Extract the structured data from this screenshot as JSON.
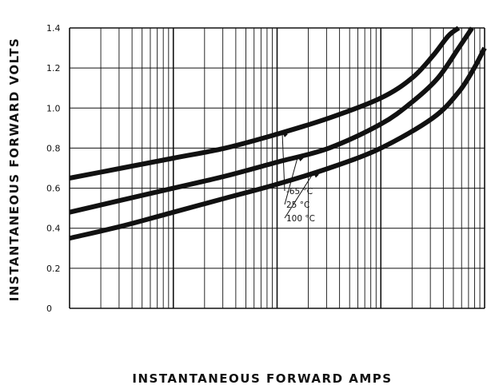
{
  "chart_data": {
    "type": "line",
    "title": "",
    "xlabel": "INSTANTANEOUS FORWARD AMPS",
    "ylabel": "INSTANTANEOUS FORWARD VOLTS",
    "x_scale": "log",
    "x_decades": 4,
    "x_tick_labels": [],
    "ylim": [
      0,
      1.4
    ],
    "y_ticks": [
      {
        "value": 0,
        "label": "0"
      },
      {
        "value": 0.2,
        "label": "0.2"
      },
      {
        "value": 0.4,
        "label": "0.4"
      },
      {
        "value": 0.6,
        "label": "0.6"
      },
      {
        "value": 0.8,
        "label": "0.8"
      },
      {
        "value": 1.0,
        "label": "1.0"
      },
      {
        "value": 1.2,
        "label": "1.2"
      },
      {
        "value": 1.4,
        "label": "1.4"
      }
    ],
    "grid": true,
    "line_color": "#111111",
    "series": [
      {
        "name": "-65 °C",
        "decade_pos": [
          0,
          0.5,
          1,
          1.5,
          2,
          2.5,
          3,
          3.3,
          3.5,
          3.65,
          3.75
        ],
        "values": [
          0.65,
          0.7,
          0.75,
          0.8,
          0.87,
          0.95,
          1.05,
          1.15,
          1.26,
          1.36,
          1.4
        ]
      },
      {
        "name": "25 °C",
        "decade_pos": [
          0,
          0.5,
          1,
          1.5,
          2,
          2.5,
          3,
          3.3,
          3.55,
          3.75,
          3.88
        ],
        "values": [
          0.48,
          0.54,
          0.6,
          0.66,
          0.73,
          0.8,
          0.92,
          1.03,
          1.15,
          1.3,
          1.4
        ]
      },
      {
        "name": "100 °C",
        "decade_pos": [
          0,
          0.5,
          1,
          1.5,
          2,
          2.5,
          3,
          3.5,
          3.75,
          3.9,
          4.0
        ],
        "values": [
          0.35,
          0.41,
          0.48,
          0.55,
          0.62,
          0.7,
          0.8,
          0.95,
          1.08,
          1.2,
          1.3
        ]
      }
    ],
    "legend": {
      "placement": "center-right",
      "entries": [
        "-65 °C",
        "25 °C",
        "100 °C"
      ]
    }
  }
}
